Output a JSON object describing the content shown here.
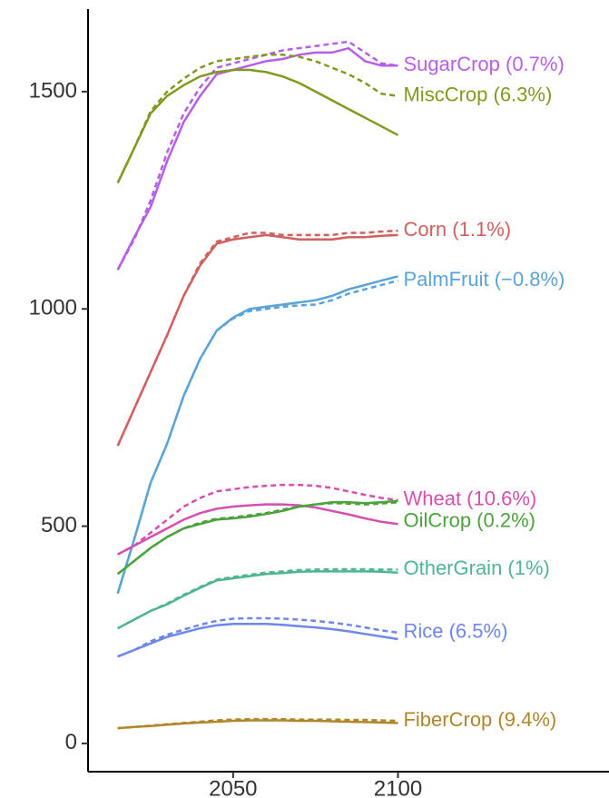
{
  "chart_data": {
    "type": "line",
    "x": [
      2015,
      2020,
      2025,
      2030,
      2035,
      2040,
      2045,
      2050,
      2055,
      2060,
      2065,
      2070,
      2075,
      2080,
      2085,
      2090,
      2095,
      2100
    ],
    "xlim": [
      2006,
      2164
    ],
    "xticks": [
      2050,
      2100
    ],
    "ylim": [
      -65,
      1690
    ],
    "yticks": [
      0,
      500,
      1000,
      1500
    ],
    "grid": false,
    "series": [
      {
        "name": "SugarCrop (0.7%)",
        "color": "#b75ee8",
        "values": [
          1090,
          1165,
          1235,
          1340,
          1430,
          1490,
          1540,
          1550,
          1560,
          1570,
          1575,
          1585,
          1590,
          1590,
          1600,
          1570,
          1560,
          1560
        ],
        "values_dashed": [
          1090,
          1160,
          1250,
          1360,
          1450,
          1510,
          1555,
          1565,
          1575,
          1585,
          1595,
          1600,
          1605,
          1610,
          1615,
          1590,
          1565,
          1560
        ]
      },
      {
        "name": "MiscCrop (6.3%)",
        "color": "#7f9a1f",
        "values": [
          1290,
          1370,
          1450,
          1490,
          1515,
          1535,
          1545,
          1550,
          1550,
          1545,
          1535,
          1520,
          1500,
          1480,
          1460,
          1440,
          1420,
          1400
        ],
        "values_dashed": [
          1290,
          1370,
          1455,
          1500,
          1530,
          1555,
          1570,
          1575,
          1580,
          1585,
          1585,
          1580,
          1570,
          1555,
          1540,
          1520,
          1495,
          1490
        ]
      },
      {
        "name": "Corn (1.1%)",
        "color": "#d0605e",
        "values": [
          685,
          770,
          855,
          940,
          1030,
          1100,
          1150,
          1160,
          1165,
          1170,
          1165,
          1160,
          1160,
          1160,
          1165,
          1165,
          1168,
          1170
        ],
        "values_dashed": [
          685,
          770,
          855,
          940,
          1030,
          1105,
          1155,
          1165,
          1175,
          1175,
          1170,
          1170,
          1170,
          1170,
          1175,
          1175,
          1178,
          1180
        ]
      },
      {
        "name": "PalmFruit (−0.8%)",
        "color": "#5aa3d8",
        "values": [
          345,
          470,
          600,
          690,
          800,
          885,
          950,
          980,
          1000,
          1005,
          1010,
          1015,
          1020,
          1030,
          1045,
          1055,
          1065,
          1075
        ],
        "values_dashed": [
          345,
          470,
          600,
          690,
          800,
          885,
          950,
          978,
          995,
          1000,
          1005,
          1008,
          1010,
          1020,
          1035,
          1045,
          1055,
          1065
        ]
      },
      {
        "name": "Wheat (10.6%)",
        "color": "#d64fb0",
        "values": [
          435,
          455,
          475,
          495,
          515,
          530,
          540,
          545,
          548,
          550,
          550,
          548,
          543,
          535,
          527,
          518,
          510,
          505
        ],
        "values_dashed": [
          435,
          455,
          485,
          515,
          545,
          565,
          580,
          585,
          590,
          593,
          595,
          595,
          593,
          588,
          580,
          572,
          565,
          560
        ]
      },
      {
        "name": "OilCrop (0.2%)",
        "color": "#4aa33a",
        "values": [
          390,
          420,
          450,
          475,
          495,
          505,
          515,
          518,
          522,
          528,
          535,
          545,
          550,
          555,
          555,
          553,
          555,
          558
        ],
        "values_dashed": [
          390,
          420,
          450,
          475,
          495,
          508,
          517,
          520,
          525,
          530,
          538,
          545,
          550,
          553,
          552,
          550,
          552,
          555
        ]
      },
      {
        "name": "OtherGrain (1%)",
        "color": "#4fb58f",
        "values": [
          265,
          285,
          305,
          320,
          340,
          358,
          375,
          380,
          385,
          390,
          392,
          395,
          396,
          396,
          396,
          396,
          395,
          393
        ],
        "values_dashed": [
          265,
          285,
          305,
          322,
          342,
          360,
          377,
          383,
          388,
          393,
          396,
          399,
          400,
          401,
          401,
          401,
          400,
          400
        ]
      },
      {
        "name": "Rice (6.5%)",
        "color": "#6f86ea",
        "values": [
          200,
          215,
          230,
          245,
          255,
          265,
          272,
          275,
          275,
          275,
          273,
          270,
          267,
          263,
          258,
          252,
          246,
          240
        ],
        "values_dashed": [
          200,
          215,
          235,
          250,
          262,
          273,
          282,
          287,
          288,
          288,
          287,
          285,
          282,
          278,
          273,
          267,
          260,
          255
        ]
      },
      {
        "name": "FiberCrop (9.4%)",
        "color": "#b0862a",
        "values": [
          35,
          38,
          40,
          43,
          46,
          48,
          50,
          52,
          53,
          53,
          53,
          52,
          52,
          51,
          50,
          49,
          48,
          47
        ],
        "values_dashed": [
          35,
          38,
          41,
          44,
          47,
          50,
          53,
          55,
          56,
          56,
          56,
          55,
          55,
          55,
          54,
          54,
          53,
          52
        ]
      }
    ]
  }
}
